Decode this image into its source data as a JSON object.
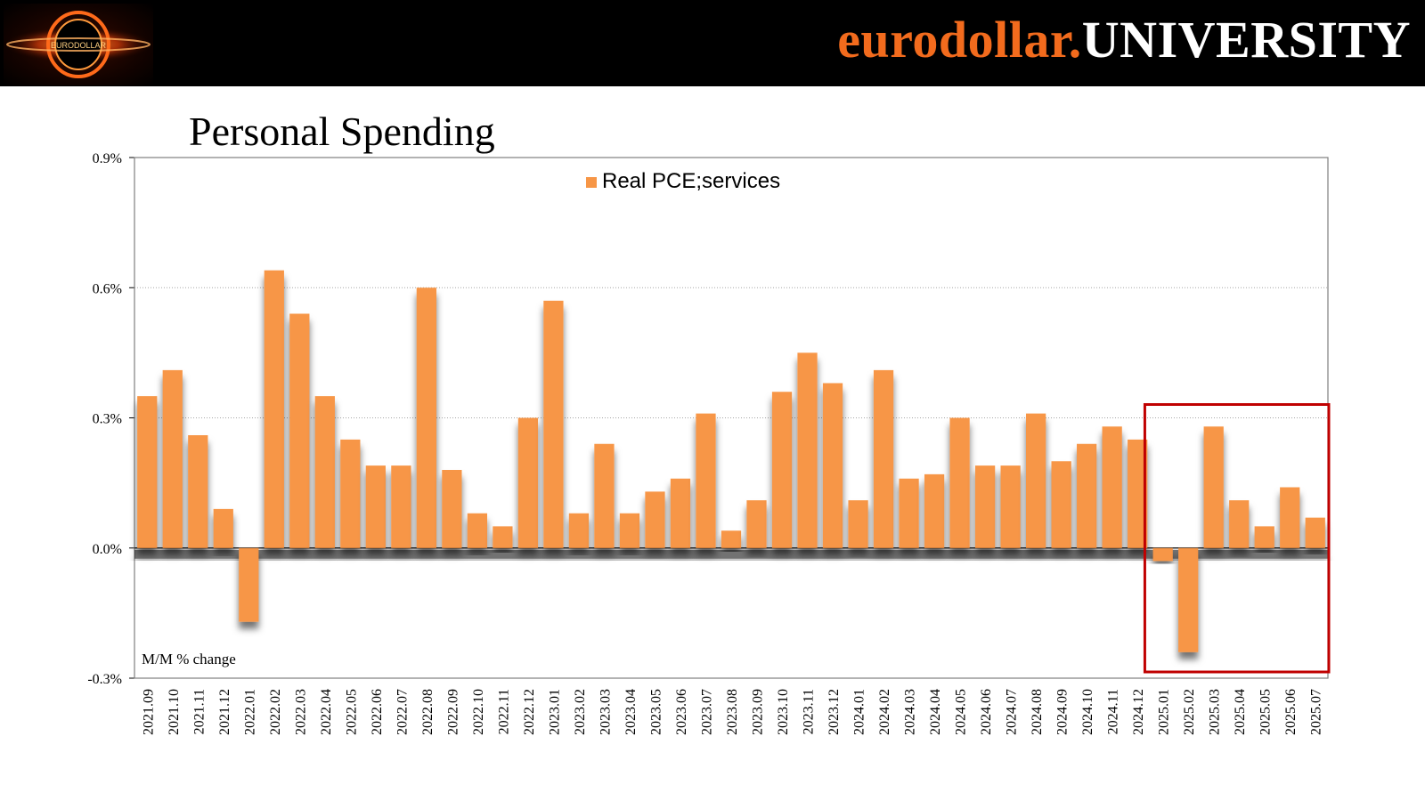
{
  "header": {
    "logo_text": "EURODOLLAR",
    "brand_part1": "eurodollar.",
    "brand_part2": "UNIVERSITY"
  },
  "colors": {
    "bar": "#f79646",
    "highlight_box": "#c00000",
    "header_bg": "#000000",
    "brand_orange": "#f26b1d"
  },
  "chart_data": {
    "type": "bar",
    "title": "Personal Spending",
    "legend": "Real PCE;services",
    "legend_position": "top-center",
    "annotation": "M/M % change",
    "ylim": [
      -0.3,
      0.9
    ],
    "yticks": [
      -0.3,
      0.0,
      0.3,
      0.6,
      0.9
    ],
    "ytick_labels": [
      "-0.3%",
      "0.0%",
      "0.3%",
      "0.6%",
      "0.9%"
    ],
    "grid": true,
    "categories": [
      "2021.09",
      "2021.10",
      "2021.11",
      "2021.12",
      "2022.01",
      "2022.02",
      "2022.03",
      "2022.04",
      "2022.05",
      "2022.06",
      "2022.07",
      "2022.08",
      "2022.09",
      "2022.10",
      "2022.11",
      "2022.12",
      "2023.01",
      "2023.02",
      "2023.03",
      "2023.04",
      "2023.05",
      "2023.06",
      "2023.07",
      "2023.08",
      "2023.09",
      "2023.10",
      "2023.11",
      "2023.12",
      "2024.01",
      "2024.02",
      "2024.03",
      "2024.04",
      "2024.05",
      "2024.06",
      "2024.07",
      "2024.08",
      "2024.09",
      "2024.10",
      "2024.11",
      "2024.12",
      "2025.01",
      "2025.02",
      "2025.03",
      "2025.04",
      "2025.05",
      "2025.06",
      "2025.07"
    ],
    "series": [
      {
        "name": "Real PCE;services",
        "values": [
          0.35,
          0.41,
          0.26,
          0.09,
          -0.17,
          0.64,
          0.54,
          0.35,
          0.25,
          0.19,
          0.19,
          0.6,
          0.18,
          0.08,
          0.05,
          0.3,
          0.57,
          0.08,
          0.24,
          0.08,
          0.13,
          0.16,
          0.31,
          0.04,
          0.11,
          0.36,
          0.45,
          0.38,
          0.11,
          0.41,
          0.16,
          0.17,
          0.3,
          0.19,
          0.19,
          0.31,
          0.2,
          0.24,
          0.28,
          0.25,
          -0.03,
          -0.24,
          0.28,
          0.11,
          0.05,
          0.14,
          0.07
        ]
      }
    ],
    "highlight": {
      "from_category": "2025.01",
      "to_category": "2025.07"
    }
  }
}
